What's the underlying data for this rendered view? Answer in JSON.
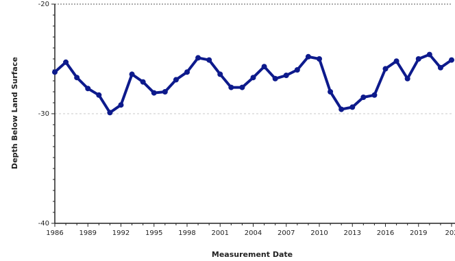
{
  "chart_data": {
    "type": "line",
    "title": "",
    "xlabel": "Measurement Date",
    "ylabel": "Depth Below Land Surface",
    "x_ticks": [
      "1986",
      "1989",
      "1992",
      "1995",
      "1998",
      "2001",
      "2004",
      "2007",
      "2010",
      "2013",
      "2016",
      "2019",
      "202"
    ],
    "y_ticks": [
      "-20",
      "-30",
      "-40"
    ],
    "xlim": [
      1986,
      2022
    ],
    "ylim": [
      -40,
      -20
    ],
    "reference_line": -30,
    "grid": false,
    "legend": "none",
    "series": [
      {
        "color": "#0d1a8c",
        "x": [
          1986,
          1987,
          1988,
          1989,
          1990,
          1991,
          1992,
          1993,
          1994,
          1995,
          1996,
          1997,
          1998,
          1999,
          2000,
          2001,
          2002,
          2003,
          2004,
          2005,
          2006,
          2007,
          2008,
          2009,
          2010,
          2011,
          2012,
          2013,
          2014,
          2015,
          2016,
          2017,
          2018,
          2019,
          2020,
          2021,
          2022
        ],
        "y": [
          -26.2,
          -25.3,
          -26.7,
          -27.7,
          -28.3,
          -29.9,
          -29.2,
          -26.4,
          -27.1,
          -28.1,
          -28.0,
          -26.9,
          -26.2,
          -24.9,
          -25.1,
          -26.4,
          -27.6,
          -27.6,
          -26.7,
          -25.7,
          -26.8,
          -26.5,
          -26.0,
          -24.8,
          -25.0,
          -28.0,
          -29.6,
          -29.4,
          -28.5,
          -28.3,
          -25.9,
          -25.2,
          -26.8,
          -25.0,
          -24.6,
          -25.8,
          -25.1
        ]
      }
    ]
  }
}
